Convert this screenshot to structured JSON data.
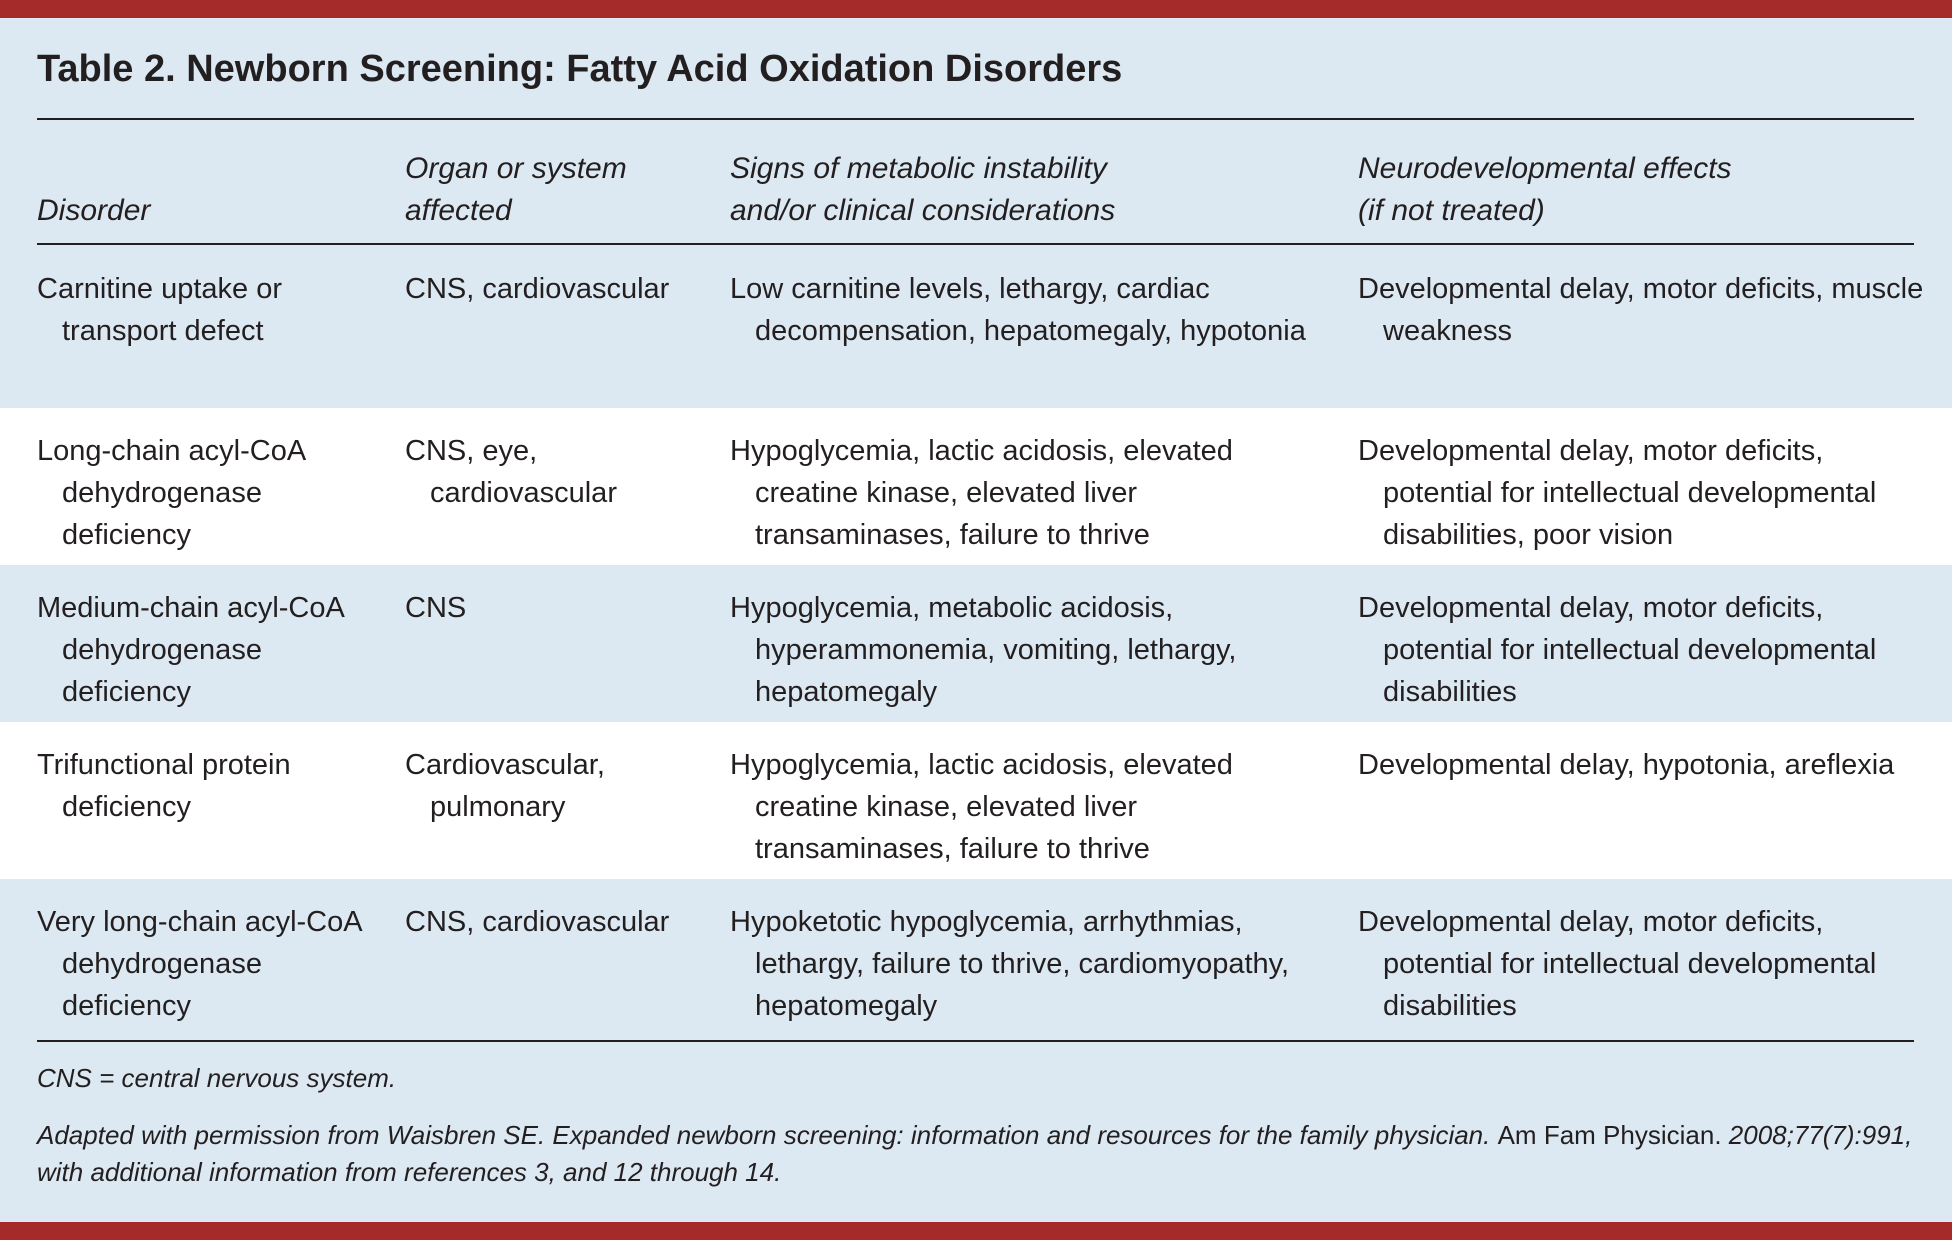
{
  "title": "Table 2. Newborn Screening: Fatty Acid Oxidation Disorders",
  "table": {
    "headers": [
      [
        "Disorder"
      ],
      [
        "Organ or system",
        "affected"
      ],
      [
        "Signs of metabolic instability",
        "and/or clinical considerations"
      ],
      [
        "Neurodevelopmental effects",
        "(if not treated)"
      ]
    ],
    "rows": [
      [
        "Carnitine uptake or transport defect",
        "CNS, cardiovascular",
        "Low carnitine levels, lethargy, cardiac decompensation, hepatomegaly, hypotonia",
        "Developmental delay, motor deficits, muscle weakness"
      ],
      [
        "Long-chain acyl-CoA dehydrogenase deficiency",
        "CNS, eye, cardiovascular",
        "Hypoglycemia, lactic acidosis, elevated creatine kinase, elevated liver transaminases, failure to thrive",
        "Developmental delay, motor deficits, potential for intellectual developmental disabilities, poor vision"
      ],
      [
        "Medium-chain acyl-CoA dehydrogenase deficiency",
        "CNS",
        "Hypoglycemia, metabolic acidosis, hyperammonemia, vomiting, lethargy, hepatomegaly",
        "Developmental delay, motor deficits, potential for intellectual developmental disabilities"
      ],
      [
        "Trifunctional protein deficiency",
        "Cardiovascular, pulmonary",
        "Hypoglycemia, lactic acidosis, elevated creatine kinase, elevated liver transaminases, failure to thrive",
        "Developmental delay, hypotonia, areflexia"
      ],
      [
        "Very long-chain acyl-CoA dehydrogenase deficiency",
        "CNS, cardiovascular",
        "Hypoketotic hypoglycemia, arrhythmias, lethargy, failure to thrive, cardiomyopathy, hepatomegaly",
        "Developmental delay, motor deficits, potential for intellectual developmental disabilities"
      ]
    ]
  },
  "footnote": "CNS = central nervous system.",
  "source": {
    "before": "Adapted with permission from Waisbren SE. Expanded newborn screening: information and resources for the family physician.",
    "journal": "Am Fam Physician.",
    "after": "2008;77(7):991, with additional information from references 3, and 12 through 14."
  }
}
